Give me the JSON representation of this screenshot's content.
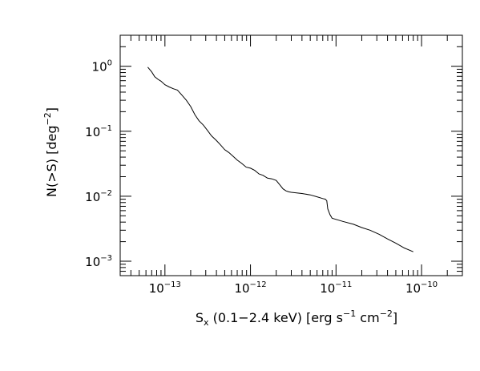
{
  "chart_data": {
    "type": "line",
    "title": "",
    "xlabel": {
      "main": "S",
      "sub": "x",
      "rest1": " (0.1−2.4 keV) [erg s",
      "sup1": "−1",
      "rest2": " cm",
      "sup2": "−2",
      "rest3": "]"
    },
    "ylabel": {
      "main": "N(>S) [deg",
      "sup": "−2",
      "rest": "]"
    },
    "xscale": "log",
    "yscale": "log",
    "xlim": [
      3e-14,
      3e-10
    ],
    "ylim": [
      0.0006,
      3
    ],
    "grid": false,
    "xticks": [
      {
        "value": 1e-13,
        "base": "10",
        "exp": "−13"
      },
      {
        "value": 1e-12,
        "base": "10",
        "exp": "−12"
      },
      {
        "value": 1e-11,
        "base": "10",
        "exp": "−11"
      },
      {
        "value": 1e-10,
        "base": "10",
        "exp": "−10"
      }
    ],
    "yticks": [
      {
        "value": 1,
        "base": "10",
        "exp": "0"
      },
      {
        "value": 0.1,
        "base": "10",
        "exp": "−1"
      },
      {
        "value": 0.01,
        "base": "10",
        "exp": "−2"
      },
      {
        "value": 0.001,
        "base": "10",
        "exp": "−3"
      }
    ],
    "series": [
      {
        "color": "#000000",
        "x": [
          6.3e-14,
          7e-14,
          7.6e-14,
          8.3e-14,
          9e-14,
          1e-13,
          1.12e-13,
          1.26e-13,
          1.4e-13,
          1.58e-13,
          1.78e-13,
          2e-13,
          2.24e-13,
          2.5e-13,
          2.8e-13,
          3.2e-13,
          3.5e-13,
          4e-13,
          4.5e-13,
          5e-13,
          5.6e-13,
          6.3e-13,
          7e-13,
          7.9e-13,
          8.9e-13,
          1e-12,
          1.12e-12,
          1.26e-12,
          1.4e-12,
          1.58e-12,
          1.78e-12,
          2e-12,
          2.2e-12,
          2.4e-12,
          2.6e-12,
          2.8e-12,
          3e-12,
          4e-12,
          5e-12,
          6e-12,
          7e-12,
          7.5e-12,
          7.8e-12,
          8e-12,
          8.5e-12,
          9e-12,
          1.2e-11,
          1.6e-11,
          2e-11,
          2.5e-11,
          3.2e-11,
          4e-11,
          5e-11,
          6.3e-11,
          8e-11
        ],
        "y": [
          0.97,
          0.82,
          0.69,
          0.63,
          0.59,
          0.52,
          0.48,
          0.45,
          0.43,
          0.36,
          0.3,
          0.24,
          0.18,
          0.145,
          0.125,
          0.1,
          0.085,
          0.072,
          0.061,
          0.052,
          0.047,
          0.041,
          0.036,
          0.032,
          0.028,
          0.027,
          0.025,
          0.022,
          0.021,
          0.019,
          0.0185,
          0.0175,
          0.015,
          0.013,
          0.0121,
          0.0117,
          0.0115,
          0.011,
          0.0105,
          0.0098,
          0.0092,
          0.009,
          0.0085,
          0.0064,
          0.0052,
          0.0046,
          0.0041,
          0.0037,
          0.0033,
          0.003,
          0.0026,
          0.0022,
          0.0019,
          0.0016,
          0.0014
        ]
      }
    ]
  }
}
